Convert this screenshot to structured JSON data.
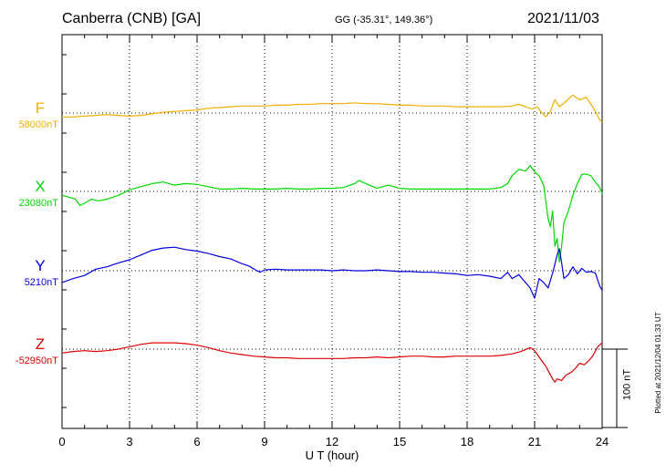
{
  "header": {
    "station": "Canberra (CNB)  [GA]",
    "coords": "GG (-35.31°, 149.36°)",
    "date": "2021/11/03"
  },
  "footer": {
    "plotted": "Plotted at 2021/12/04 01:33 UT"
  },
  "scale_bar": {
    "label": "100 nT",
    "value": 100,
    "unit": "nT"
  },
  "chart_data": {
    "type": "line",
    "xlabel": "U T (hour)",
    "xlim": [
      0,
      24
    ],
    "xticks": [
      0,
      3,
      6,
      9,
      12,
      15,
      18,
      21,
      24
    ],
    "xtick_labels": [
      "0",
      "3",
      "6",
      "9",
      "12",
      "15",
      "18",
      "21",
      "24"
    ],
    "grid": true,
    "series": [
      {
        "name": "F",
        "base_label": "58000nT",
        "base_value": 58000,
        "color": "#f0b000",
        "points": [
          [
            0,
            -5
          ],
          [
            0.5,
            -5
          ],
          [
            1,
            -4
          ],
          [
            1.5,
            -3
          ],
          [
            2,
            -2
          ],
          [
            2.5,
            -3
          ],
          [
            3,
            -4
          ],
          [
            3.5,
            -3
          ],
          [
            4,
            -1
          ],
          [
            4.5,
            1
          ],
          [
            5,
            2
          ],
          [
            5.5,
            3
          ],
          [
            6,
            4
          ],
          [
            6.5,
            6
          ],
          [
            7,
            7
          ],
          [
            7.5,
            8
          ],
          [
            8,
            9
          ],
          [
            8.5,
            9
          ],
          [
            9,
            9
          ],
          [
            9.5,
            10
          ],
          [
            10,
            10
          ],
          [
            10.5,
            11
          ],
          [
            11,
            11
          ],
          [
            11.5,
            12
          ],
          [
            12,
            12
          ],
          [
            12.5,
            12
          ],
          [
            13,
            13
          ],
          [
            13.5,
            12
          ],
          [
            14,
            12
          ],
          [
            14.5,
            11
          ],
          [
            15,
            10
          ],
          [
            15.5,
            10
          ],
          [
            16,
            9
          ],
          [
            16.5,
            9
          ],
          [
            17,
            9
          ],
          [
            17.5,
            8
          ],
          [
            18,
            8
          ],
          [
            18.5,
            8
          ],
          [
            19,
            8
          ],
          [
            19.5,
            8
          ],
          [
            20,
            9
          ],
          [
            20.3,
            11
          ],
          [
            20.6,
            8
          ],
          [
            20.9,
            5
          ],
          [
            21.1,
            8
          ],
          [
            21.3,
            1
          ],
          [
            21.5,
            -5
          ],
          [
            21.7,
            2
          ],
          [
            21.9,
            17
          ],
          [
            22.1,
            8
          ],
          [
            22.4,
            15
          ],
          [
            22.7,
            23
          ],
          [
            23,
            17
          ],
          [
            23.3,
            20
          ],
          [
            23.6,
            7
          ],
          [
            23.9,
            -9
          ],
          [
            24,
            -11
          ]
        ]
      },
      {
        "name": "X",
        "base_label": "23080nT",
        "base_value": 23080,
        "color": "#00d800",
        "points": [
          [
            0,
            -5
          ],
          [
            0.4,
            -8
          ],
          [
            0.6,
            -10
          ],
          [
            0.8,
            -18
          ],
          [
            1,
            -15
          ],
          [
            1.3,
            -10
          ],
          [
            1.6,
            -12
          ],
          [
            2,
            -10
          ],
          [
            2.5,
            -5
          ],
          [
            3,
            2
          ],
          [
            3.5,
            6
          ],
          [
            4,
            10
          ],
          [
            4.5,
            12
          ],
          [
            5,
            8
          ],
          [
            5.5,
            10
          ],
          [
            6,
            9
          ],
          [
            6.5,
            6
          ],
          [
            7,
            3
          ],
          [
            7.5,
            3
          ],
          [
            8,
            4
          ],
          [
            8.5,
            3
          ],
          [
            9,
            3
          ],
          [
            9.5,
            3
          ],
          [
            10,
            4
          ],
          [
            10.5,
            3
          ],
          [
            11,
            3
          ],
          [
            11.5,
            4
          ],
          [
            12,
            4
          ],
          [
            12.5,
            5
          ],
          [
            13,
            10
          ],
          [
            13.2,
            14
          ],
          [
            13.5,
            10
          ],
          [
            14,
            4
          ],
          [
            14.5,
            8
          ],
          [
            15,
            4
          ],
          [
            15.5,
            3
          ],
          [
            16,
            3
          ],
          [
            16.5,
            3
          ],
          [
            17,
            3
          ],
          [
            17.5,
            3
          ],
          [
            18,
            3
          ],
          [
            18.5,
            3
          ],
          [
            19,
            3
          ],
          [
            19.5,
            5
          ],
          [
            19.8,
            10
          ],
          [
            20,
            20
          ],
          [
            20.3,
            28
          ],
          [
            20.6,
            26
          ],
          [
            20.8,
            33
          ],
          [
            21,
            25
          ],
          [
            21.2,
            20
          ],
          [
            21.4,
            8
          ],
          [
            21.6,
            -35
          ],
          [
            21.7,
            -45
          ],
          [
            21.8,
            -25
          ],
          [
            21.9,
            -70
          ],
          [
            22,
            -60
          ],
          [
            22.1,
            -90
          ],
          [
            22.2,
            -70
          ],
          [
            22.3,
            -40
          ],
          [
            22.5,
            -25
          ],
          [
            22.7,
            -5
          ],
          [
            22.9,
            10
          ],
          [
            23.1,
            22
          ],
          [
            23.3,
            22
          ],
          [
            23.5,
            20
          ],
          [
            23.7,
            12
          ],
          [
            23.9,
            5
          ],
          [
            24,
            -3
          ]
        ]
      },
      {
        "name": "Y",
        "base_label": "5210nT",
        "base_value": 5210,
        "color": "#0000e0",
        "points": [
          [
            0,
            -15
          ],
          [
            0.5,
            -10
          ],
          [
            1,
            -6
          ],
          [
            1.5,
            2
          ],
          [
            2,
            5
          ],
          [
            2.5,
            10
          ],
          [
            3,
            14
          ],
          [
            3.5,
            20
          ],
          [
            4,
            26
          ],
          [
            4.5,
            29
          ],
          [
            5,
            30
          ],
          [
            5.5,
            27
          ],
          [
            6,
            25
          ],
          [
            6.5,
            22
          ],
          [
            7,
            18
          ],
          [
            7.5,
            15
          ],
          [
            8,
            9
          ],
          [
            8.3,
            6
          ],
          [
            8.6,
            1
          ],
          [
            8.8,
            -2
          ],
          [
            9,
            1
          ],
          [
            9.5,
            2
          ],
          [
            10,
            1
          ],
          [
            10.5,
            1
          ],
          [
            11,
            1
          ],
          [
            11.5,
            1
          ],
          [
            12,
            0
          ],
          [
            12.5,
            1
          ],
          [
            13,
            0
          ],
          [
            13.5,
            0
          ],
          [
            14,
            1
          ],
          [
            14.5,
            0
          ],
          [
            15,
            -1
          ],
          [
            15.5,
            -1
          ],
          [
            16,
            -2
          ],
          [
            16.5,
            -2
          ],
          [
            17,
            -3
          ],
          [
            17.5,
            -4
          ],
          [
            18,
            -6
          ],
          [
            18.5,
            -5
          ],
          [
            19,
            -7
          ],
          [
            19.5,
            -10
          ],
          [
            19.8,
            -2
          ],
          [
            20,
            -10
          ],
          [
            20.3,
            -5
          ],
          [
            20.5,
            -12
          ],
          [
            20.8,
            -22
          ],
          [
            21,
            -35
          ],
          [
            21.2,
            -10
          ],
          [
            21.4,
            -15
          ],
          [
            21.6,
            -22
          ],
          [
            21.8,
            -3
          ],
          [
            22,
            20
          ],
          [
            22.1,
            28
          ],
          [
            22.2,
            10
          ],
          [
            22.3,
            -10
          ],
          [
            22.5,
            -5
          ],
          [
            22.7,
            5
          ],
          [
            22.9,
            -4
          ],
          [
            23.1,
            3
          ],
          [
            23.3,
            -2
          ],
          [
            23.5,
            -1
          ],
          [
            23.7,
            -3
          ],
          [
            23.9,
            -20
          ],
          [
            24,
            -25
          ]
        ]
      },
      {
        "name": "Z",
        "base_label": "-52950nT",
        "base_value": -52950,
        "color": "#e00000",
        "points": [
          [
            0,
            -5
          ],
          [
            0.5,
            -3
          ],
          [
            1,
            -2
          ],
          [
            1.5,
            -3
          ],
          [
            2,
            -2
          ],
          [
            2.5,
            0
          ],
          [
            3,
            3
          ],
          [
            3.5,
            6
          ],
          [
            4,
            8
          ],
          [
            4.5,
            8
          ],
          [
            5,
            8
          ],
          [
            5.5,
            7
          ],
          [
            6,
            5
          ],
          [
            6.5,
            2
          ],
          [
            7,
            -2
          ],
          [
            7.5,
            -5
          ],
          [
            8,
            -7
          ],
          [
            8.5,
            -9
          ],
          [
            9,
            -10
          ],
          [
            9.5,
            -11
          ],
          [
            10,
            -11
          ],
          [
            10.5,
            -12
          ],
          [
            11,
            -12
          ],
          [
            11.5,
            -12
          ],
          [
            12,
            -12
          ],
          [
            12.5,
            -12
          ],
          [
            13,
            -11
          ],
          [
            13.5,
            -11
          ],
          [
            14,
            -10
          ],
          [
            14.5,
            -11
          ],
          [
            15,
            -10
          ],
          [
            15.5,
            -9
          ],
          [
            16,
            -9
          ],
          [
            16.5,
            -10
          ],
          [
            17,
            -10
          ],
          [
            17.5,
            -9
          ],
          [
            18,
            -9
          ],
          [
            18.5,
            -9
          ],
          [
            19,
            -9
          ],
          [
            19.5,
            -8
          ],
          [
            20,
            -6
          ],
          [
            20.4,
            -3
          ],
          [
            20.8,
            2
          ],
          [
            21,
            -2
          ],
          [
            21.2,
            -10
          ],
          [
            21.5,
            -22
          ],
          [
            21.8,
            -38
          ],
          [
            21.9,
            -42
          ],
          [
            22,
            -38
          ],
          [
            22.2,
            -40
          ],
          [
            22.4,
            -33
          ],
          [
            22.6,
            -30
          ],
          [
            22.8,
            -25
          ],
          [
            23,
            -18
          ],
          [
            23.2,
            -20
          ],
          [
            23.4,
            -15
          ],
          [
            23.6,
            -8
          ],
          [
            23.8,
            3
          ],
          [
            24,
            8
          ]
        ]
      }
    ]
  }
}
